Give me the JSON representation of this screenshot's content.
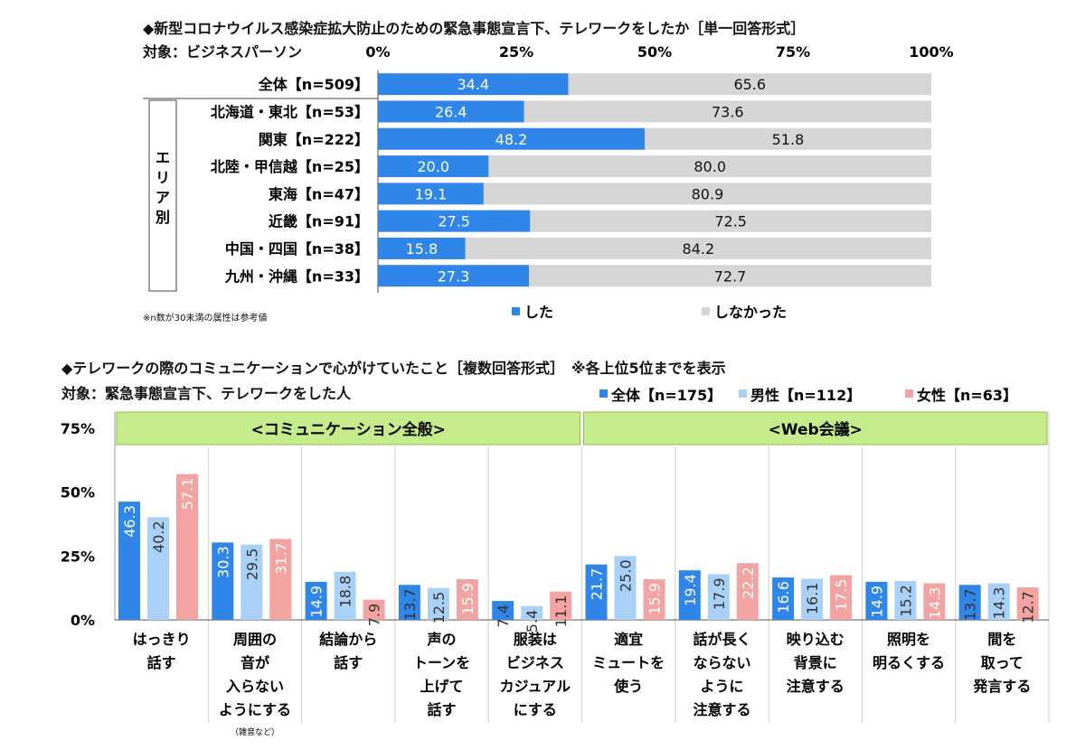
{
  "chart_data": [
    {
      "type": "bar",
      "stacked": true,
      "orientation": "horizontal",
      "title": "◆新型コロナウイルス感染症拡大防止のための緊急事態宣言下、テレワークをしたか［単一回答形式］",
      "subtitle": "対象：ビジネスパーソン",
      "x_ticks": [
        "0%",
        "25%",
        "50%",
        "75%",
        "100%"
      ],
      "xlim": [
        0,
        100
      ],
      "group_label": "エリア別",
      "categories": [
        "全体【n=509】",
        "北海道・東北【n=53】",
        "関東【n=222】",
        "北陸・甲信越【n=25】",
        "東海【n=47】",
        "近畿【n=91】",
        "中国・四国【n=38】",
        "九州・沖縄【n=33】"
      ],
      "series": [
        {
          "name": "した",
          "color": "#2F86E8",
          "values": [
            34.4,
            26.4,
            48.2,
            20.0,
            19.1,
            27.5,
            15.8,
            27.3
          ],
          "labels": [
            "34.4",
            "26.4",
            "48.2",
            "20.0",
            "19.1",
            "27.5",
            "15.8",
            "27.3"
          ]
        },
        {
          "name": "しなかった",
          "color": "#D6D6D6",
          "values": [
            65.6,
            73.6,
            51.8,
            80.0,
            80.9,
            72.5,
            84.2,
            72.7
          ],
          "labels": [
            "65.6",
            "73.6",
            "51.8",
            "80.0",
            "80.9",
            "72.5",
            "84.2",
            "72.7"
          ]
        }
      ],
      "note": "※n数が30未満の属性は参考値",
      "legend": "bottom"
    },
    {
      "type": "bar",
      "orientation": "vertical",
      "title": "◆テレワークの際のコミュニケーションで心がけていたこと［複数回答形式］　※各上位5位までを表示",
      "subtitle": "対象：緊急事態宣言下、テレワークをした人",
      "y_ticks": [
        "0%",
        "25%",
        "50%",
        "75%"
      ],
      "ylim": [
        0,
        75
      ],
      "groups": [
        {
          "label": "<コミュニケーション全般>",
          "span": [
            0,
            4
          ]
        },
        {
          "label": "<Web会議>",
          "span": [
            5,
            9
          ]
        }
      ],
      "categories": [
        [
          "はっきり",
          "話す"
        ],
        [
          "周囲の",
          "音が",
          "入らない",
          "ようにする"
        ],
        [
          "結論から",
          "話す"
        ],
        [
          "声の",
          "トーンを",
          "上げて",
          "話す"
        ],
        [
          "服装は",
          "ビジネス",
          "カジュアル",
          "にする"
        ],
        [
          "適宜",
          "ミュートを",
          "使う"
        ],
        [
          "話が長く",
          "ならない",
          "ように",
          "注意する"
        ],
        [
          "映り込む",
          "背景に",
          "注意する"
        ],
        [
          "照明を",
          "明るくする"
        ],
        [
          "間を",
          "取って",
          "発言する"
        ]
      ],
      "category_notes": [
        "",
        "（雑音など）",
        "",
        "",
        "",
        "",
        "",
        "",
        "",
        ""
      ],
      "series": [
        {
          "name": "全体【n=175】",
          "color": "#2F86E8",
          "values": [
            46.3,
            30.3,
            14.9,
            13.7,
            7.4,
            21.7,
            19.4,
            16.6,
            14.9,
            13.7
          ],
          "labels": [
            "46.3",
            "30.3",
            "14.9",
            "13.7",
            "7.4",
            "21.7",
            "19.4",
            "16.6",
            "14.9",
            "13.7"
          ]
        },
        {
          "name": "男性【n=112】",
          "color": "#A9D1F7",
          "values": [
            40.2,
            29.5,
            18.8,
            12.5,
            5.4,
            25.0,
            17.9,
            16.1,
            15.2,
            14.3
          ],
          "labels": [
            "40.2",
            "29.5",
            "18.8",
            "12.5",
            "5.4",
            "25.0",
            "17.9",
            "16.1",
            "15.2",
            "14.3"
          ]
        },
        {
          "name": "女性【n=63】",
          "color": "#F4A3A3",
          "values": [
            57.1,
            31.7,
            7.9,
            15.9,
            11.1,
            15.9,
            22.2,
            17.5,
            14.3,
            12.7
          ],
          "labels": [
            "57.1",
            "31.7",
            "7.9",
            "15.9",
            "11.1",
            "15.9",
            "22.2",
            "17.5",
            "14.3",
            "12.7"
          ]
        }
      ],
      "legend": "top-right"
    }
  ]
}
